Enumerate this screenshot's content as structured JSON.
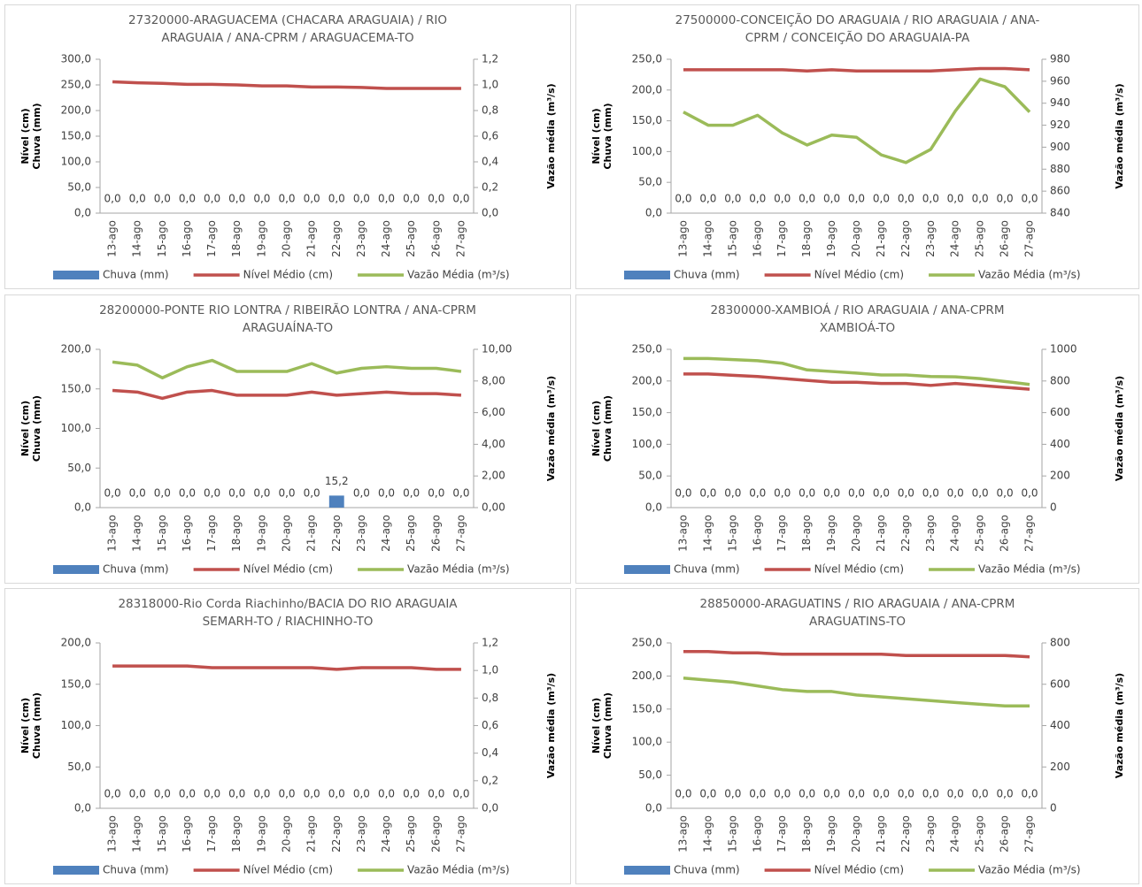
{
  "chart_data": [
    {
      "type": "combo",
      "title": [
        "27320000-ARAGUACEMA (CHACARA ARAGUAIA)  / RIO",
        "ARAGUAIA / ANA-CPRM / ARAGUACEMA-TO"
      ],
      "ylabel": [
        "Nível (cm)",
        "Chuva (mm)"
      ],
      "y2label": "Vazão média (m³/s)",
      "categories": [
        "13-ago",
        "14-ago",
        "15-ago",
        "16-ago",
        "17-ago",
        "18-ago",
        "19-ago",
        "20-ago",
        "21-ago",
        "22-ago",
        "23-ago",
        "24-ago",
        "25-ago",
        "26-ago",
        "27-ago"
      ],
      "ylim": [
        0,
        300
      ],
      "yticks": [
        {
          "value": 0,
          "label": "0,0"
        },
        {
          "value": 50,
          "label": "50,0"
        },
        {
          "value": 100,
          "label": "100,0"
        },
        {
          "value": 150,
          "label": "150,0"
        },
        {
          "value": 200,
          "label": "200,0"
        },
        {
          "value": 250,
          "label": "250,0"
        },
        {
          "value": 300,
          "label": "300,0"
        }
      ],
      "y2lim": [
        0,
        1.2
      ],
      "y2ticks": [
        {
          "value": 0,
          "label": "0,0"
        },
        {
          "value": 0.2,
          "label": "0,2"
        },
        {
          "value": 0.4,
          "label": "0,4"
        },
        {
          "value": 0.6,
          "label": "0,6"
        },
        {
          "value": 0.8,
          "label": "0,8"
        },
        {
          "value": 1,
          "label": "1,0"
        },
        {
          "value": 1.2,
          "label": "1,2"
        }
      ],
      "series": [
        {
          "name": "Chuva (mm)",
          "type": "bar",
          "color": "#4f81bd",
          "values": [
            0,
            0,
            0,
            0,
            0,
            0,
            0,
            0,
            0,
            0,
            0,
            0,
            0,
            0,
            0
          ],
          "value_labels": [
            "0,0",
            "0,0",
            "0,0",
            "0,0",
            "0,0",
            "0,0",
            "0,0",
            "0,0",
            "0,0",
            "0,0",
            "0,0",
            "0,0",
            "0,0",
            "0,0",
            "0,0"
          ]
        },
        {
          "name": "Nível Médio (cm)",
          "type": "line",
          "color": "#c0504d",
          "values": [
            256,
            254,
            253,
            251,
            251,
            250,
            248,
            248,
            246,
            246,
            245,
            243,
            243,
            243,
            243
          ]
        },
        {
          "name": "Vazão Média (m³/s)",
          "type": "line",
          "axis": "y2",
          "color": "#9bbb59",
          "values": [
            null,
            null,
            null,
            null,
            null,
            null,
            null,
            null,
            null,
            null,
            null,
            null,
            null,
            null,
            null
          ]
        }
      ]
    },
    {
      "type": "combo",
      "title": [
        "27500000-CONCEIÇÃO DO ARAGUAIA / RIO ARAGUAIA / ANA-",
        "CPRM / CONCEIÇÃO DO ARAGUAIA-PA"
      ],
      "ylabel": [
        "Nível (cm)",
        "Chuva (mm)"
      ],
      "y2label": "Vazão média (m³/s)",
      "categories": [
        "13-ago",
        "14-ago",
        "15-ago",
        "16-ago",
        "17-ago",
        "18-ago",
        "19-ago",
        "20-ago",
        "21-ago",
        "22-ago",
        "23-ago",
        "24-ago",
        "25-ago",
        "26-ago",
        "27-ago"
      ],
      "ylim": [
        0,
        250
      ],
      "yticks": [
        {
          "value": 0,
          "label": "0,0"
        },
        {
          "value": 50,
          "label": "50,0"
        },
        {
          "value": 100,
          "label": "100,0"
        },
        {
          "value": 150,
          "label": "150,0"
        },
        {
          "value": 200,
          "label": "200,0"
        },
        {
          "value": 250,
          "label": "250,0"
        }
      ],
      "y2lim": [
        840,
        980
      ],
      "y2ticks": [
        840,
        860,
        880,
        900,
        920,
        940,
        960,
        980
      ],
      "series": [
        {
          "name": "Chuva (mm)",
          "type": "bar",
          "color": "#4f81bd",
          "values": [
            0,
            0,
            0,
            0,
            0,
            0,
            0,
            0,
            0,
            0,
            0,
            0,
            0,
            0,
            0
          ],
          "value_labels": [
            "0,0",
            "0,0",
            "0,0",
            "0,0",
            "0,0",
            "0,0",
            "0,0",
            "0,0",
            "0,0",
            "0,0",
            "0,0",
            "0,0",
            "0,0",
            "0,0",
            "0,0"
          ]
        },
        {
          "name": "Nível Médio (cm)",
          "type": "line",
          "color": "#c0504d",
          "values": [
            233,
            233,
            233,
            233,
            233,
            231,
            233,
            231,
            231,
            231,
            231,
            233,
            235,
            235,
            233
          ]
        },
        {
          "name": "Vazão Média (m³/s)",
          "type": "line",
          "axis": "y2",
          "color": "#9bbb59",
          "values": [
            932,
            920,
            920,
            929,
            913,
            902,
            911,
            909,
            893,
            886,
            898,
            933,
            962,
            955,
            932
          ]
        }
      ]
    },
    {
      "type": "combo",
      "title": [
        "28200000-PONTE RIO LONTRA / RIBEIRÃO  LONTRA / ANA-CPRM",
        "ARAGUAÍNA-TO"
      ],
      "ylabel": [
        "Nível (cm)",
        "Chuva (mm)"
      ],
      "y2label": "Vazão média (m³/s)",
      "categories": [
        "13-ago",
        "14-ago",
        "15-ago",
        "16-ago",
        "17-ago",
        "18-ago",
        "19-ago",
        "20-ago",
        "21-ago",
        "22-ago",
        "23-ago",
        "24-ago",
        "25-ago",
        "26-ago",
        "27-ago"
      ],
      "ylim": [
        0,
        200
      ],
      "yticks": [
        {
          "value": 0,
          "label": "0,0"
        },
        {
          "value": 50,
          "label": "50,0"
        },
        {
          "value": 100,
          "label": "100,0"
        },
        {
          "value": 150,
          "label": "150,0"
        },
        {
          "value": 200,
          "label": "200,0"
        }
      ],
      "y2lim": [
        0,
        10
      ],
      "y2ticks": [
        {
          "value": 0,
          "label": "0,00"
        },
        {
          "value": 2,
          "label": "2,00"
        },
        {
          "value": 4,
          "label": "4,00"
        },
        {
          "value": 6,
          "label": "6,00"
        },
        {
          "value": 8,
          "label": "8,00"
        },
        {
          "value": 10,
          "label": "10,00"
        }
      ],
      "series": [
        {
          "name": "Chuva (mm)",
          "type": "bar",
          "color": "#4f81bd",
          "values": [
            0,
            0,
            0,
            0,
            0,
            0,
            0,
            0,
            0,
            15.2,
            0,
            0,
            0,
            0,
            0
          ],
          "value_labels": [
            "0,0",
            "0,0",
            "0,0",
            "0,0",
            "0,0",
            "0,0",
            "0,0",
            "0,0",
            "0,0",
            "15,2",
            "0,0",
            "0,0",
            "0,0",
            "0,0",
            "0,0"
          ]
        },
        {
          "name": "Nível Médio (cm)",
          "type": "line",
          "color": "#c0504d",
          "values": [
            148,
            146,
            138,
            146,
            148,
            142,
            142,
            142,
            146,
            142,
            144,
            146,
            144,
            144,
            142
          ]
        },
        {
          "name": "Vazão Média (m³/s)",
          "type": "line",
          "axis": "y2",
          "color": "#9bbb59",
          "values": [
            9.2,
            9.0,
            8.2,
            8.9,
            9.3,
            8.6,
            8.6,
            8.6,
            9.1,
            8.5,
            8.8,
            8.9,
            8.8,
            8.8,
            8.6
          ]
        }
      ]
    },
    {
      "type": "combo",
      "title": [
        "28300000-XAMBIOÁ / RIO ARAGUAIA  / ANA-CPRM",
        "XAMBIOÁ-TO"
      ],
      "ylabel": [
        "Nível (cm)",
        "Chuva (mm)"
      ],
      "y2label": "Vazão média (m³/s)",
      "categories": [
        "13-ago",
        "14-ago",
        "15-ago",
        "16-ago",
        "17-ago",
        "18-ago",
        "19-ago",
        "20-ago",
        "21-ago",
        "22-ago",
        "23-ago",
        "24-ago",
        "25-ago",
        "26-ago",
        "27-ago"
      ],
      "ylim": [
        0,
        250
      ],
      "yticks": [
        {
          "value": 0,
          "label": "0,0"
        },
        {
          "value": 50,
          "label": "50,0"
        },
        {
          "value": 100,
          "label": "100,0"
        },
        {
          "value": 150,
          "label": "150,0"
        },
        {
          "value": 200,
          "label": "200,0"
        },
        {
          "value": 250,
          "label": "250,0"
        }
      ],
      "y2lim": [
        0,
        1000
      ],
      "y2ticks": [
        0,
        200,
        400,
        600,
        800,
        1000
      ],
      "series": [
        {
          "name": "Chuva (mm)",
          "type": "bar",
          "color": "#4f81bd",
          "values": [
            0,
            0,
            0,
            0,
            0,
            0,
            0,
            0,
            0,
            0,
            0,
            0,
            0,
            0,
            0
          ],
          "value_labels": [
            "0,0",
            "0,0",
            "0,0",
            "0,0",
            "0,0",
            "0,0",
            "0,0",
            "0,0",
            "0,0",
            "0,0",
            "0,0",
            "0,0",
            "0,0",
            "0,0",
            "0,0"
          ]
        },
        {
          "name": "Nível Médio (cm)",
          "type": "line",
          "color": "#c0504d",
          "values": [
            211,
            211,
            209,
            207,
            204,
            201,
            198,
            198,
            196,
            196,
            193,
            196,
            193,
            190,
            187
          ]
        },
        {
          "name": "Vazão Média (m³/s)",
          "type": "line",
          "axis": "y2",
          "color": "#9bbb59",
          "values": [
            942,
            942,
            935,
            928,
            912,
            870,
            860,
            850,
            838,
            838,
            828,
            826,
            815,
            797,
            778
          ]
        }
      ]
    },
    {
      "type": "combo",
      "title": [
        "28318000-Rio Corda Riachinho/BACIA DO RIO ARAGUAIA",
        "SEMARH-TO / RIACHINHO-TO"
      ],
      "ylabel": [
        "Nível (cm)",
        "Chuva (mm)"
      ],
      "y2label": "Vazão média (m³/s)",
      "categories": [
        "13-ago",
        "14-ago",
        "15-ago",
        "16-ago",
        "17-ago",
        "18-ago",
        "19-ago",
        "20-ago",
        "21-ago",
        "22-ago",
        "23-ago",
        "24-ago",
        "25-ago",
        "26-ago",
        "27-ago"
      ],
      "ylim": [
        0,
        200
      ],
      "yticks": [
        {
          "value": 0,
          "label": "0,0"
        },
        {
          "value": 50,
          "label": "50,0"
        },
        {
          "value": 100,
          "label": "100,0"
        },
        {
          "value": 150,
          "label": "150,0"
        },
        {
          "value": 200,
          "label": "200,0"
        }
      ],
      "y2lim": [
        0,
        1.2
      ],
      "y2ticks": [
        {
          "value": 0,
          "label": "0,0"
        },
        {
          "value": 0.2,
          "label": "0,2"
        },
        {
          "value": 0.4,
          "label": "0,4"
        },
        {
          "value": 0.6,
          "label": "0,6"
        },
        {
          "value": 0.8,
          "label": "0,8"
        },
        {
          "value": 1,
          "label": "1,0"
        },
        {
          "value": 1.2,
          "label": "1,2"
        }
      ],
      "series": [
        {
          "name": "Chuva (mm)",
          "type": "bar",
          "color": "#4f81bd",
          "values": [
            0,
            0,
            0,
            0,
            0,
            0,
            0,
            0,
            0,
            0,
            0,
            0,
            0,
            0,
            0
          ],
          "value_labels": [
            "0,0",
            "0,0",
            "0,0",
            "0,0",
            "0,0",
            "0,0",
            "0,0",
            "0,0",
            "0,0",
            "0,0",
            "0,0",
            "0,0",
            "0,0",
            "0,0",
            "0,0"
          ]
        },
        {
          "name": "Nível Médio (cm)",
          "type": "line",
          "color": "#c0504d",
          "values": [
            172,
            172,
            172,
            172,
            170,
            170,
            170,
            170,
            170,
            168,
            170,
            170,
            170,
            168,
            168
          ]
        },
        {
          "name": "Vazão Média (m³/s)",
          "type": "line",
          "axis": "y2",
          "color": "#9bbb59",
          "values": [
            null,
            null,
            null,
            null,
            null,
            null,
            null,
            null,
            null,
            null,
            null,
            null,
            null,
            null,
            null
          ]
        }
      ]
    },
    {
      "type": "combo",
      "title": [
        "28850000-ARAGUATINS / RIO ARAGUAIA  / ANA-CPRM",
        "ARAGUATINS-TO"
      ],
      "ylabel": [
        "Nível (cm)",
        "Chuva (mm)"
      ],
      "y2label": "Vazão média (m³/s)",
      "categories": [
        "13-ago",
        "14-ago",
        "15-ago",
        "16-ago",
        "17-ago",
        "18-ago",
        "19-ago",
        "20-ago",
        "21-ago",
        "22-ago",
        "23-ago",
        "24-ago",
        "25-ago",
        "26-ago",
        "27-ago"
      ],
      "ylim": [
        0,
        250
      ],
      "yticks": [
        {
          "value": 0,
          "label": "0,0"
        },
        {
          "value": 50,
          "label": "50,0"
        },
        {
          "value": 100,
          "label": "100,0"
        },
        {
          "value": 150,
          "label": "150,0"
        },
        {
          "value": 200,
          "label": "200,0"
        },
        {
          "value": 250,
          "label": "250,0"
        }
      ],
      "y2lim": [
        0,
        800
      ],
      "y2ticks": [
        0,
        200,
        400,
        600,
        800
      ],
      "series": [
        {
          "name": "Chuva (mm)",
          "type": "bar",
          "color": "#4f81bd",
          "values": [
            0,
            0,
            0,
            0,
            0,
            0,
            0,
            0,
            0,
            0,
            0,
            0,
            0,
            0,
            0
          ],
          "value_labels": [
            "0,0",
            "0,0",
            "0,0",
            "0,0",
            "0,0",
            "0,0",
            "0,0",
            "0,0",
            "0,0",
            "0,0",
            "0,0",
            "0,0",
            "0,0",
            "0,0",
            "0,0"
          ]
        },
        {
          "name": "Nível Médio (cm)",
          "type": "line",
          "color": "#c0504d",
          "values": [
            237,
            237,
            235,
            235,
            233,
            233,
            233,
            233,
            233,
            231,
            231,
            231,
            231,
            231,
            229
          ]
        },
        {
          "name": "Vazão Média (m³/s)",
          "type": "line",
          "axis": "y2",
          "color": "#9bbb59",
          "values": [
            630,
            620,
            610,
            592,
            574,
            565,
            565,
            548,
            539,
            530,
            521,
            512,
            503,
            495,
            495
          ]
        }
      ]
    }
  ]
}
